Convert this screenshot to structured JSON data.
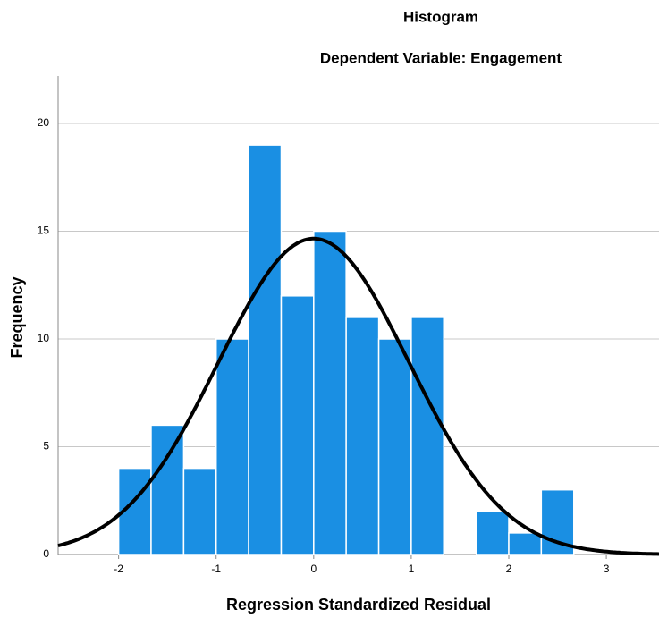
{
  "chart_data": {
    "type": "histogram",
    "title": "Histogram",
    "subtitle": "Dependent Variable: Engagement",
    "x_label": "Regression Standardized Residual",
    "y_label": "Frequency",
    "bins": [
      -2,
      -1.667,
      -1.333,
      -1,
      -0.667,
      -0.333,
      0,
      0.333,
      0.667,
      1,
      1.333,
      1.667,
      2,
      2.333,
      2.667
    ],
    "counts": [
      4,
      6,
      4,
      10,
      19,
      12,
      15,
      11,
      10,
      11,
      0,
      2,
      1,
      3
    ],
    "color": "#1a8fe3",
    "edge_color": "#ffffff",
    "normal_curve": {
      "mean": 0,
      "std": 0.98,
      "color": "#000000"
    },
    "xlim": [
      -2.62,
      3.54
    ],
    "xticks": [
      -2,
      -1,
      0,
      1,
      2,
      3
    ],
    "ylim": [
      0,
      22.2
    ],
    "yticks": [
      0,
      5,
      10,
      15,
      20
    ],
    "grid": true
  }
}
